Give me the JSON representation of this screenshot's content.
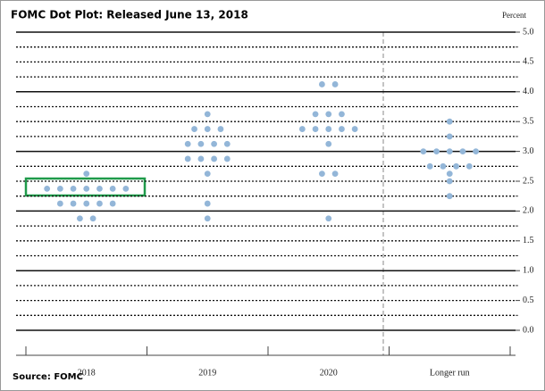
{
  "chart_data": {
    "type": "dot-plot",
    "title": "FOMC Dot Plot: Released June 13, 2018",
    "y_axis_label": "Percent",
    "source": "Source: FOMC",
    "categories": [
      "2018",
      "2019",
      "2020",
      "Longer run"
    ],
    "values": [
      [
        2.625,
        2.375,
        2.375,
        2.375,
        2.375,
        2.375,
        2.375,
        2.375,
        2.125,
        2.125,
        2.125,
        2.125,
        2.125,
        1.875,
        1.875
      ],
      [
        3.625,
        3.375,
        3.375,
        3.375,
        3.125,
        3.125,
        3.125,
        3.125,
        2.875,
        2.875,
        2.875,
        2.875,
        2.625,
        2.125,
        1.875
      ],
      [
        4.125,
        4.125,
        3.625,
        3.625,
        3.625,
        3.375,
        3.375,
        3.375,
        3.375,
        3.375,
        3.125,
        2.625,
        2.625,
        1.875
      ],
      [
        3.5,
        3.25,
        3,
        3,
        3,
        3,
        3,
        2.75,
        2.75,
        2.75,
        2.75,
        2.625,
        2.5,
        2.25
      ]
    ],
    "color": "#93b6d8",
    "ylim": [
      0,
      5
    ],
    "yticks": [
      {
        "value": 0,
        "label": "0.0"
      },
      {
        "value": 0.5,
        "label": "0.5"
      },
      {
        "value": 1,
        "label": "1.0"
      },
      {
        "value": 1.5,
        "label": "1.5"
      },
      {
        "value": 2,
        "label": "2.0"
      },
      {
        "value": 2.5,
        "label": "2.5"
      },
      {
        "value": 3,
        "label": "3.0"
      },
      {
        "value": 3.5,
        "label": "3.5"
      },
      {
        "value": 4,
        "label": "4.0"
      },
      {
        "value": 4.5,
        "label": "4.5"
      },
      {
        "value": 5,
        "label": "5.0"
      }
    ],
    "minor_yticks": [
      0.25,
      0.75,
      1.25,
      1.75,
      2.25,
      2.75,
      3.25,
      3.75,
      4.25,
      4.75
    ],
    "grid": true
  }
}
